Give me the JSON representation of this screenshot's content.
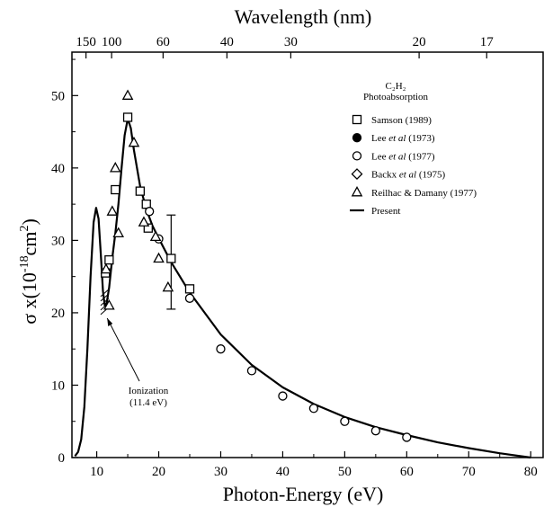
{
  "chart_data": {
    "type": "scatter",
    "xlabel": "Photon-Energy (eV)",
    "x2label": "Wavelength (nm)",
    "ylabel_main": "σ x(10",
    "ylabel_sup": "-18",
    "ylabel_unit": "cm",
    "ylabel_unit_sup": "2",
    "ylabel_close": ")",
    "xlim": [
      6,
      82
    ],
    "ylim": [
      0,
      56
    ],
    "x_ticks": [
      "10",
      "20",
      "30",
      "40",
      "50",
      "60",
      "70",
      "80"
    ],
    "y_ticks": [
      "0",
      "10",
      "20",
      "30",
      "40",
      "50"
    ],
    "top_ticks": [
      {
        "label": "150",
        "ev": 8.27
      },
      {
        "label": "100",
        "ev": 12.4
      },
      {
        "label": "60",
        "ev": 20.7
      },
      {
        "label": "40",
        "ev": 31.0
      },
      {
        "label": "30",
        "ev": 41.3
      },
      {
        "label": "20",
        "ev": 62.0
      },
      {
        "label": "17",
        "ev": 72.9
      }
    ],
    "legend": {
      "title_line1": "C₂H₂",
      "title_line2": "Photoabsorption",
      "entries": [
        {
          "key": "samson",
          "label": "Samson (1989)"
        },
        {
          "key": "lee73",
          "label_pre": "Lee ",
          "label_em": "et al",
          "label_post": " (1973)"
        },
        {
          "key": "lee77",
          "label_pre": "Lee ",
          "label_em": "et al",
          "label_post": " (1977)"
        },
        {
          "key": "backx",
          "label_pre": "Backx ",
          "label_em": "et al",
          "label_post": " (1975)"
        },
        {
          "key": "reilhac",
          "label": "Reilhac & Damany (1977)"
        },
        {
          "key": "present",
          "label": "Present"
        }
      ]
    },
    "annotation": {
      "line1": "Ionization",
      "line2": "(11.4 eV)",
      "arrow_to": [
        11.4,
        19.5
      ]
    },
    "series": [
      {
        "name": "Samson (1989)",
        "marker": "square",
        "points": [
          [
            11.4,
            25.5
          ],
          [
            12.0,
            27.3
          ],
          [
            13.0,
            37.0
          ],
          [
            15.0,
            47.0
          ],
          [
            17.0,
            36.8
          ],
          [
            18.0,
            35.0
          ],
          [
            18.3,
            31.7
          ],
          [
            22.0,
            27.5
          ],
          [
            25.0,
            23.3
          ]
        ]
      },
      {
        "name": "Lee et al (1977)",
        "marker": "circle",
        "points": [
          [
            18.5,
            34.0
          ],
          [
            20.0,
            30.2
          ],
          [
            25.0,
            22.0
          ],
          [
            30.0,
            15.0
          ],
          [
            35.0,
            12.0
          ],
          [
            40.0,
            8.5
          ],
          [
            45.0,
            6.8
          ],
          [
            50.0,
            5.0
          ],
          [
            55.0,
            3.7
          ],
          [
            60.0,
            2.8
          ]
        ]
      },
      {
        "name": "Reilhac & Damany (1977)",
        "marker": "triangle",
        "points": [
          [
            11.5,
            26.0
          ],
          [
            12.0,
            21.0
          ],
          [
            12.5,
            34.0
          ],
          [
            13.0,
            40.0
          ],
          [
            13.5,
            31.0
          ],
          [
            15.0,
            50.0
          ],
          [
            16.0,
            43.5
          ],
          [
            17.6,
            32.5
          ],
          [
            19.5,
            30.5
          ],
          [
            20.0,
            27.5
          ],
          [
            21.5,
            23.5
          ]
        ]
      },
      {
        "name": "Present",
        "marker": "line",
        "points": [
          [
            6.5,
            0.2
          ],
          [
            7.0,
            0.8
          ],
          [
            7.5,
            2.5
          ],
          [
            8.0,
            7.0
          ],
          [
            8.5,
            15.0
          ],
          [
            9.0,
            25.0
          ],
          [
            9.5,
            32.5
          ],
          [
            9.9,
            34.5
          ],
          [
            10.3,
            33.0
          ],
          [
            10.7,
            27.5
          ],
          [
            11.0,
            23.0
          ],
          [
            11.3,
            21.0
          ],
          [
            11.6,
            21.3
          ],
          [
            12.0,
            23.5
          ],
          [
            12.5,
            27.5
          ],
          [
            13.0,
            31.0
          ],
          [
            13.5,
            35.0
          ],
          [
            14.0,
            40.0
          ],
          [
            14.5,
            44.5
          ],
          [
            15.0,
            46.8
          ],
          [
            15.5,
            45.5
          ],
          [
            16.0,
            42.5
          ],
          [
            17.0,
            37.5
          ],
          [
            18.0,
            34.3
          ],
          [
            19.0,
            32.0
          ],
          [
            20.0,
            30.3
          ],
          [
            22.0,
            27.0
          ],
          [
            25.0,
            22.8
          ],
          [
            30.0,
            17.0
          ],
          [
            35.0,
            12.8
          ],
          [
            40.0,
            9.7
          ],
          [
            45.0,
            7.4
          ],
          [
            50.0,
            5.6
          ],
          [
            55.0,
            4.2
          ],
          [
            60.0,
            3.1
          ],
          [
            65.0,
            2.1
          ],
          [
            70.0,
            1.3
          ],
          [
            75.0,
            0.6
          ],
          [
            80.0,
            0.0
          ]
        ]
      }
    ],
    "error_bar": {
      "x": 22.0,
      "y": 27.5,
      "low": 20.5,
      "high": 33.5
    }
  }
}
